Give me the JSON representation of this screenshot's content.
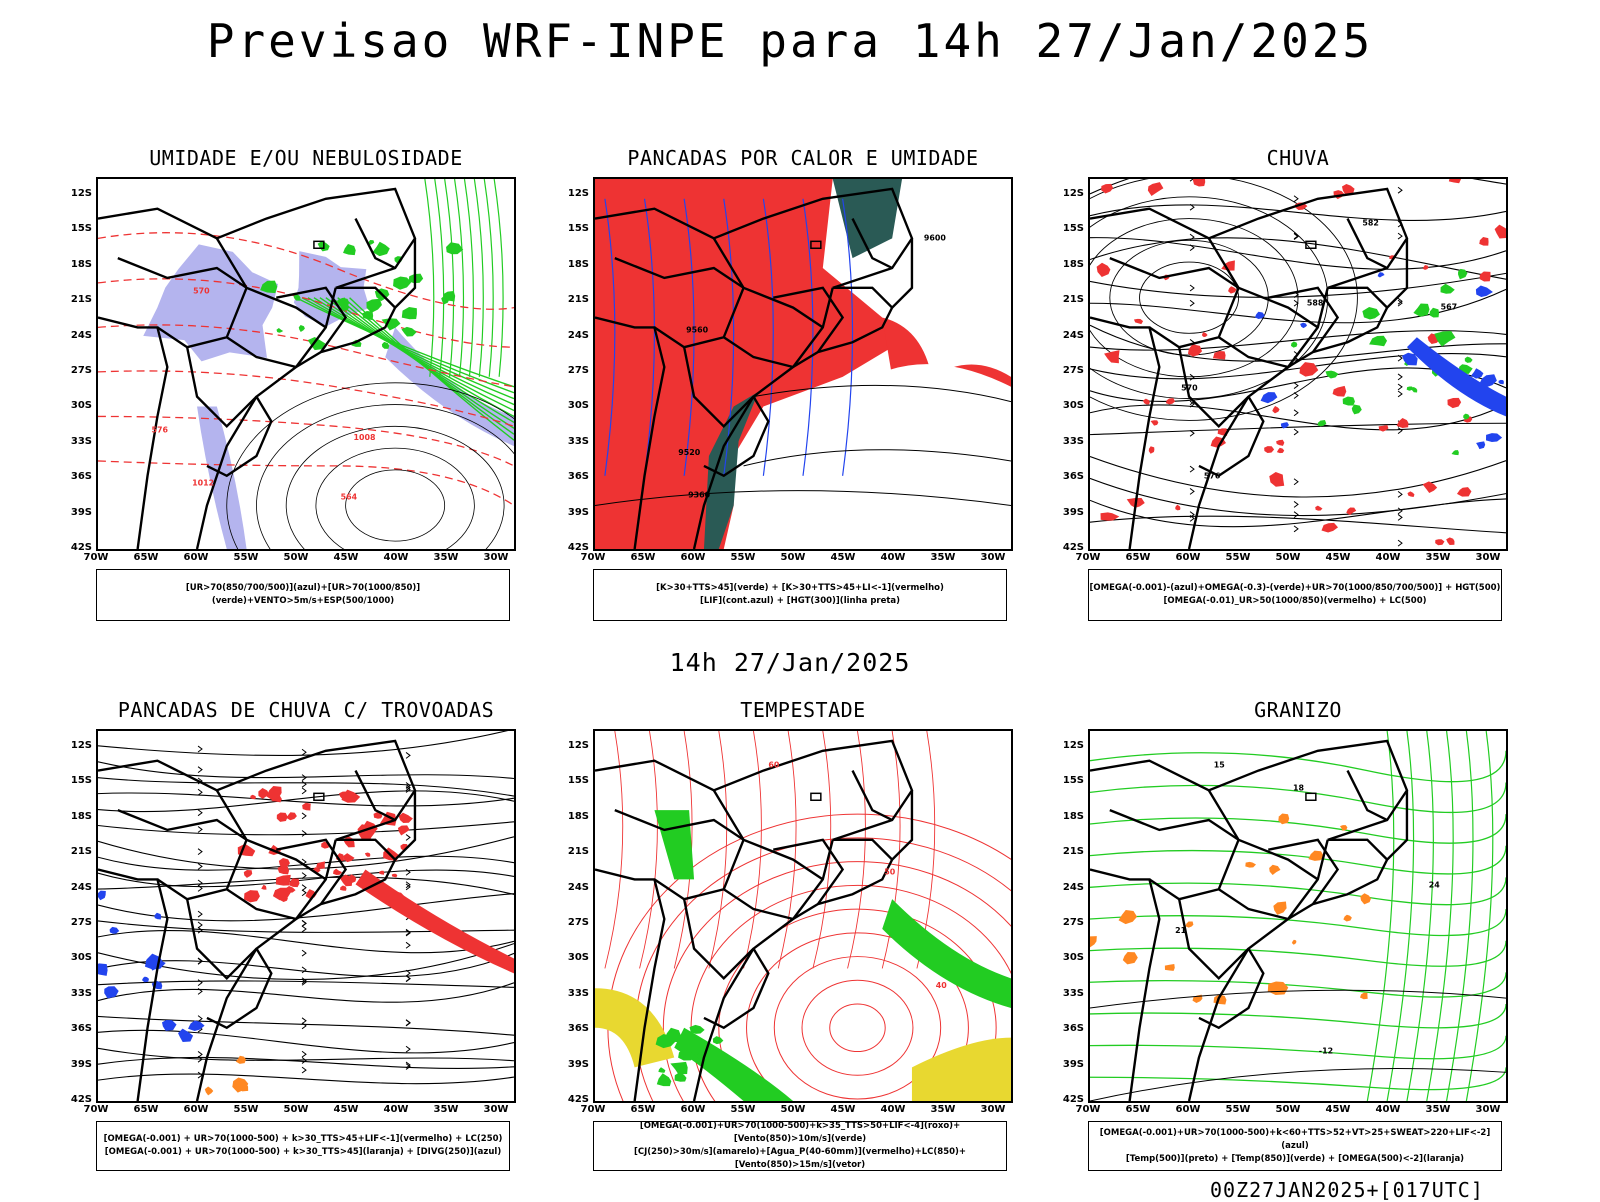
{
  "title": "Previsao WRF-INPE  para 14h 27/Jan/2025",
  "subtitle": "14h 27/Jan/2025",
  "footer": "00Z27JAN2025+[017UTC]",
  "lat_labels": [
    "12S",
    "15S",
    "18S",
    "21S",
    "24S",
    "27S",
    "30S",
    "33S",
    "36S",
    "39S",
    "42S"
  ],
  "lon_labels": [
    "70W",
    "65W",
    "60W",
    "55W",
    "50W",
    "45W",
    "40W",
    "35W",
    "30W"
  ],
  "panels": [
    {
      "title": "UMIDADE E/OU NEBULOSIDADE",
      "legend": [
        "[UR>70(850/700/500)](azul)+[UR>70(1000/850)](verde)+VENTO>5m/s+ESP(500/1000)"
      ],
      "contour_labels": [
        "1012",
        "1008",
        "576",
        "570",
        "564"
      ]
    },
    {
      "title": "PANCADAS POR CALOR E UMIDADE",
      "legend": [
        "[K>30+TTS>45](verde) + [K>30+TTS>45+LI<-1](vermelho)",
        "[LIF](cont.azul) + [HGT(300)](linha preta)"
      ],
      "contour_labels": [
        "9600",
        "9560",
        "9520",
        "9360"
      ]
    },
    {
      "title": "CHUVA",
      "legend": [
        "[OMEGA(-0.001)-(azul)+OMEGA(-0.3)-(verde)+UR>70(1000/850/700/500)] + HGT(500)",
        "[OMEGA(-0.01)_UR>50(1000/850)(vermelho) + LC(500)"
      ],
      "contour_labels": [
        "588",
        "582",
        "576",
        "570",
        "567"
      ]
    },
    {
      "title": "PANCADAS DE CHUVA C/ TROVOADAS",
      "legend": [
        "[OMEGA(-0.001) + UR>70(1000-500) + k>30_TTS>45+LIF<-1](vermelho) + LC(250)",
        "[OMEGA(-0.001) + UR>70(1000-500) + k>30_TTS>45](laranja) + [DIVG(250)](azul)"
      ],
      "contour_labels": []
    },
    {
      "title": "TEMPESTADE",
      "legend": [
        "[OMEGA(-0.001)+UR>70(1000-500)+k>35_TTS>50+LIF<-4](roxo)+[Vento(850)>10m/s](verde)",
        "[CJ(250)>30m/s](amarelo)+[Agua_P(40-60mm)](vermelho)+LC(850)+[Vento(850)>15m/s](vetor)"
      ],
      "contour_labels": [
        "40",
        "50",
        "60"
      ]
    },
    {
      "title": "GRANIZO",
      "legend": [
        "[OMEGA(-0.001)+UR>70(1000-500)+k<60+TTS>52+VT>25+SWEAT>220+LIF<-2](azul)",
        "[Temp(500)](preto) + [Temp(850)](verde) + [OMEGA(500)<-2](laranja)"
      ],
      "contour_labels": [
        "-12",
        "15",
        "18",
        "21",
        "24"
      ]
    }
  ],
  "colors": {
    "red": "#ee3333",
    "green": "#22cc22",
    "blue": "#2244ee",
    "lavender": "#b4b4ee",
    "darkteal": "#2a5a55",
    "yellow": "#e8d830",
    "orange": "#ff8822"
  }
}
